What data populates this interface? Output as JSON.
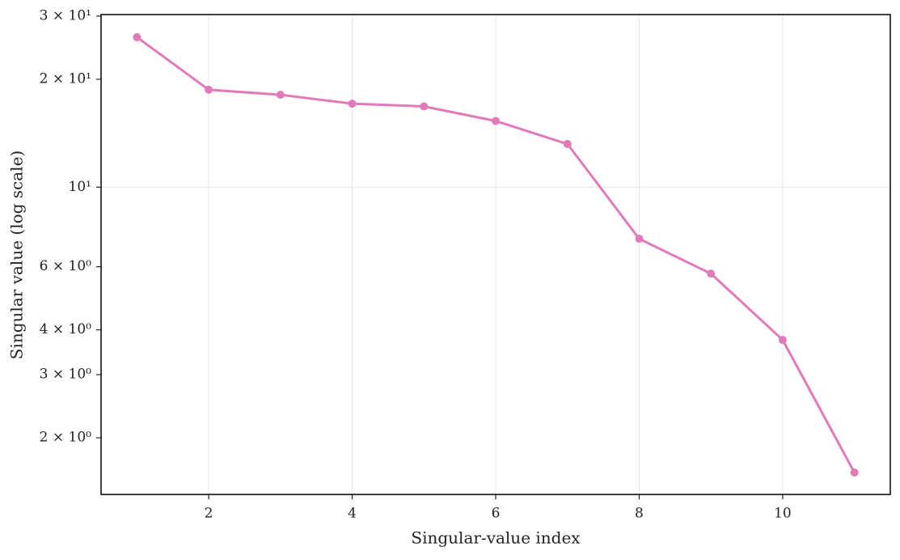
{
  "chart_data": {
    "type": "line",
    "x_label": "Singular-value index",
    "y_label": "Singular value (log scale)",
    "x": [
      1,
      2,
      3,
      4,
      5,
      6,
      7,
      8,
      9,
      10,
      11
    ],
    "series": [
      {
        "color": "#e07ab8",
        "values": [
          26.2,
          18.7,
          18.1,
          17.1,
          16.8,
          15.3,
          13.2,
          7.18,
          5.74,
          3.75,
          1.6
        ]
      }
    ],
    "xlim": [
      0.5,
      11.5
    ],
    "xticks": [
      2,
      4,
      6,
      8,
      10
    ],
    "ylim": [
      1.39,
      30.3
    ],
    "y_log": true,
    "yticks": [
      {
        "value": 2,
        "label": "2 × 10⁰"
      },
      {
        "value": 3,
        "label": "3 × 10⁰"
      },
      {
        "value": 4,
        "label": "4 × 10⁰"
      },
      {
        "value": 6,
        "label": "6 × 10⁰"
      },
      {
        "value": 10,
        "label": "10¹"
      },
      {
        "value": 20,
        "label": "2 × 10¹"
      },
      {
        "value": 30,
        "label": "3 × 10¹"
      }
    ],
    "grid": true
  }
}
